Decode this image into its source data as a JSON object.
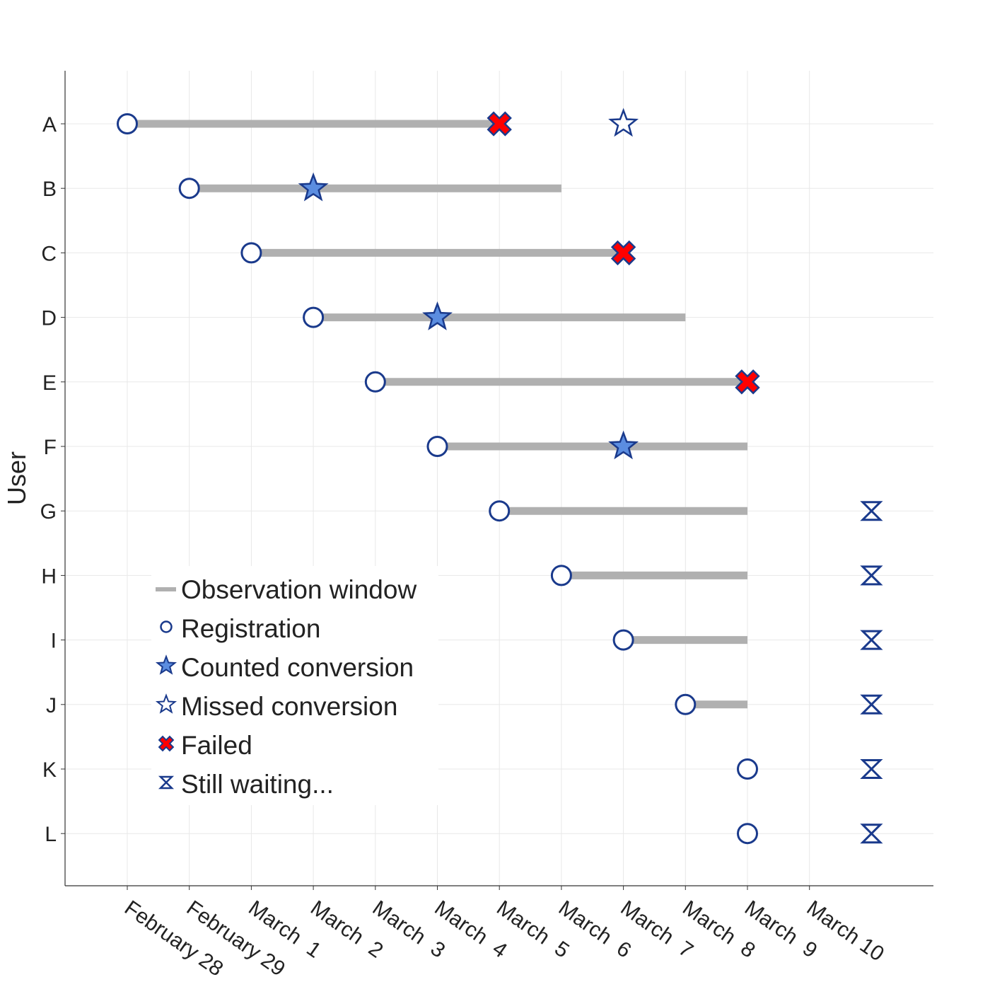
{
  "chart_data": {
    "type": "scatter",
    "subtype": "timeline",
    "ylabel": "User",
    "xlabel": "",
    "x_categories": [
      "February 28",
      "February 29",
      "March  1",
      "March  2",
      "March  3",
      "March  4",
      "March  5",
      "March  6",
      "March  7",
      "March  8",
      "March  9",
      "March 10"
    ],
    "users": [
      "A",
      "B",
      "C",
      "D",
      "E",
      "F",
      "G",
      "H",
      "I",
      "J",
      "K",
      "L"
    ],
    "grid": true,
    "legend_position": "bottom-left",
    "legend": [
      {
        "key": "window",
        "label": "Observation window"
      },
      {
        "key": "registration",
        "label": "Registration"
      },
      {
        "key": "counted",
        "label": "Counted conversion"
      },
      {
        "key": "missed",
        "label": "Missed conversion"
      },
      {
        "key": "failed",
        "label": "Failed"
      },
      {
        "key": "waiting",
        "label": "Still waiting..."
      }
    ],
    "colors": {
      "window": "#b0b0b0",
      "marker_edge": "#1a3a8c",
      "conversion_fill": "#5b8de0",
      "failed_fill": "#ff0000",
      "grid": "#e8e8e8",
      "axis": "#333333"
    },
    "records": [
      {
        "user": "A",
        "registration": "February 28",
        "window_end": "March  5",
        "failed": "March  5",
        "missed_conversion": "March  7"
      },
      {
        "user": "B",
        "registration": "February 29",
        "window_end": "March  6",
        "counted_conversion": "March  2"
      },
      {
        "user": "C",
        "registration": "March  1",
        "window_end": "March  7",
        "failed": "March  7"
      },
      {
        "user": "D",
        "registration": "March  2",
        "window_end": "March  8",
        "counted_conversion": "March  4"
      },
      {
        "user": "E",
        "registration": "March  3",
        "window_end": "March  9",
        "failed": "March  9"
      },
      {
        "user": "F",
        "registration": "March  4",
        "window_end": "March  9",
        "counted_conversion": "March  7"
      },
      {
        "user": "G",
        "registration": "March  5",
        "window_end": "March  9",
        "still_waiting": true
      },
      {
        "user": "H",
        "registration": "March  6",
        "window_end": "March  9",
        "still_waiting": true
      },
      {
        "user": "I",
        "registration": "March  7",
        "window_end": "March  9",
        "still_waiting": true
      },
      {
        "user": "J",
        "registration": "March  8",
        "window_end": "March  9",
        "still_waiting": true
      },
      {
        "user": "K",
        "registration": "March  9",
        "window_end": "March  9",
        "still_waiting": true
      },
      {
        "user": "L",
        "registration": "March  9",
        "window_end": "March  9",
        "still_waiting": true
      }
    ]
  }
}
